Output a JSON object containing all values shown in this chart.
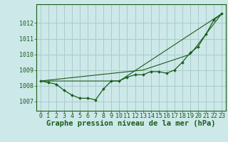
{
  "background_color": "#cce8e8",
  "grid_color": "#aacccc",
  "line_color": "#1a5c1a",
  "xlabel": "Graphe pression niveau de la mer (hPa)",
  "xlabel_fontsize": 7.5,
  "ylim": [
    1006.4,
    1013.2
  ],
  "xlim": [
    -0.5,
    23.5
  ],
  "yticks": [
    1007,
    1008,
    1009,
    1010,
    1011,
    1012
  ],
  "xticks": [
    0,
    1,
    2,
    3,
    4,
    5,
    6,
    7,
    8,
    9,
    10,
    11,
    12,
    13,
    14,
    15,
    16,
    17,
    18,
    19,
    20,
    21,
    22,
    23
  ],
  "tick_fontsize": 6,
  "series": [
    {
      "x": [
        0,
        1,
        2,
        3,
        4,
        5,
        6,
        7,
        8,
        9,
        10,
        11,
        12,
        13,
        14,
        15,
        16,
        17,
        18,
        19,
        20,
        21,
        22,
        23
      ],
      "y": [
        1008.3,
        1008.2,
        1008.1,
        1007.7,
        1007.4,
        1007.2,
        1007.2,
        1007.1,
        1007.8,
        1008.3,
        1008.3,
        1008.55,
        1008.7,
        1008.7,
        1008.9,
        1008.9,
        1008.8,
        1009.0,
        1009.5,
        1010.1,
        1010.5,
        1011.3,
        1012.2,
        1012.6
      ],
      "marker": true
    },
    {
      "x": [
        0,
        10,
        23
      ],
      "y": [
        1008.3,
        1008.3,
        1012.6
      ],
      "marker": false
    },
    {
      "x": [
        0,
        13,
        19,
        23
      ],
      "y": [
        1008.3,
        1009.0,
        1010.0,
        1012.6
      ],
      "marker": false
    }
  ]
}
